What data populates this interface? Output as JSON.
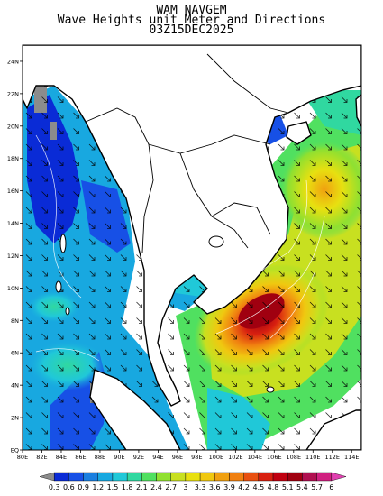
{
  "header": {
    "line1": "WAM NAVGEM",
    "line2": "Wave Heights unit Meter and Directions",
    "line3": "03Z15DEC2025"
  },
  "map": {
    "lon_labels": [
      "80E",
      "82E",
      "84E",
      "86E",
      "88E",
      "90E",
      "92E",
      "94E",
      "96E",
      "98E",
      "100E",
      "102E",
      "104E",
      "106E",
      "108E",
      "110E",
      "112E",
      "114E"
    ],
    "lat_labels": [
      "EQ",
      "2N",
      "4N",
      "6N",
      "8N",
      "10N",
      "12N",
      "14N",
      "16N",
      "18N",
      "20N",
      "22N",
      "24N"
    ],
    "lon_range": [
      80,
      115
    ],
    "lat_range": [
      0,
      25
    ]
  },
  "colorbar": {
    "labels": [
      "0.3",
      "0.6",
      "0.9",
      "1.2",
      "1.5",
      "1.8",
      "2.1",
      "2.4",
      "2.7",
      "3",
      "3.3",
      "3.6",
      "3.9",
      "4.2",
      "4.5",
      "4.8",
      "5.1",
      "5.4",
      "5.7",
      "6"
    ],
    "colors": [
      "#8c8c8c",
      "#0a2bd6",
      "#1750e6",
      "#1a7fe0",
      "#18a8e0",
      "#20c8d8",
      "#30d8a0",
      "#50e060",
      "#90e030",
      "#c8e020",
      "#e8e010",
      "#f0c810",
      "#f0a010",
      "#f08010",
      "#e85010",
      "#d82010",
      "#c00010",
      "#a00010",
      "#b01050",
      "#d02080",
      "#e040b0"
    ]
  }
}
